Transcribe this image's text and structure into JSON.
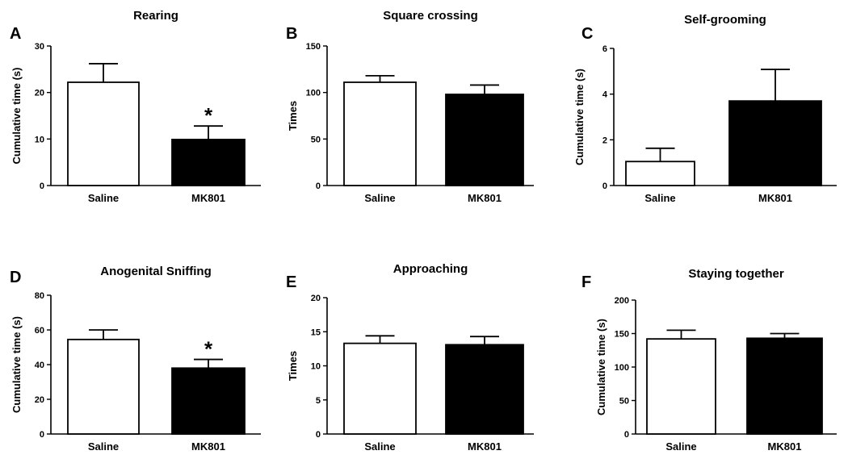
{
  "chart_data": [
    {
      "panel": "A",
      "type": "bar",
      "title": "Rearing",
      "ylabel": "Cumulative time (s)",
      "ylim": [
        0,
        30
      ],
      "yticks": [
        0,
        10,
        20,
        30
      ],
      "categories": [
        "Saline",
        "MK801"
      ],
      "values": [
        22.2,
        9.9
      ],
      "errors": [
        4.0,
        2.9
      ],
      "colors": [
        "#ffffff",
        "#000000"
      ],
      "significance": [
        "",
        "*"
      ]
    },
    {
      "panel": "B",
      "type": "bar",
      "title": "Square crossing",
      "ylabel": "Times",
      "ylim": [
        0,
        150
      ],
      "yticks": [
        0,
        50,
        100,
        150
      ],
      "categories": [
        "Saline",
        "MK801"
      ],
      "values": [
        111,
        98
      ],
      "errors": [
        7,
        10
      ],
      "colors": [
        "#ffffff",
        "#000000"
      ],
      "significance": [
        "",
        ""
      ]
    },
    {
      "panel": "C",
      "type": "bar",
      "title": "Self-grooming",
      "ylabel": "Cumulative time (s)",
      "ylim": [
        0,
        6
      ],
      "yticks": [
        0,
        2,
        4,
        6
      ],
      "categories": [
        "Saline",
        "MK801"
      ],
      "values": [
        1.05,
        3.7
      ],
      "errors": [
        0.58,
        1.38
      ],
      "colors": [
        "#ffffff",
        "#000000"
      ],
      "significance": [
        "",
        ""
      ]
    },
    {
      "panel": "D",
      "type": "bar",
      "title": "Anogenital Sniffing",
      "ylabel": "Cumulative time (s)",
      "ylim": [
        0,
        80
      ],
      "yticks": [
        0,
        20,
        40,
        60,
        80
      ],
      "categories": [
        "Saline",
        "MK801"
      ],
      "values": [
        54.5,
        38
      ],
      "errors": [
        5.5,
        5
      ],
      "colors": [
        "#ffffff",
        "#000000"
      ],
      "significance": [
        "",
        "*"
      ]
    },
    {
      "panel": "E",
      "type": "bar",
      "title": "Approaching",
      "ylabel": "Times",
      "ylim": [
        0,
        20
      ],
      "yticks": [
        0,
        5,
        10,
        15,
        20
      ],
      "categories": [
        "Saline",
        "MK801"
      ],
      "values": [
        13.3,
        13.1
      ],
      "errors": [
        1.1,
        1.2
      ],
      "colors": [
        "#ffffff",
        "#000000"
      ],
      "significance": [
        "",
        ""
      ]
    },
    {
      "panel": "F",
      "type": "bar",
      "title": "Staying together",
      "ylabel": "Cumulative time (s)",
      "ylim": [
        0,
        200
      ],
      "yticks": [
        0,
        50,
        100,
        150,
        200
      ],
      "categories": [
        "Saline",
        "MK801"
      ],
      "values": [
        142,
        143
      ],
      "errors": [
        13,
        7
      ],
      "colors": [
        "#ffffff",
        "#000000"
      ],
      "significance": [
        "",
        ""
      ]
    }
  ]
}
